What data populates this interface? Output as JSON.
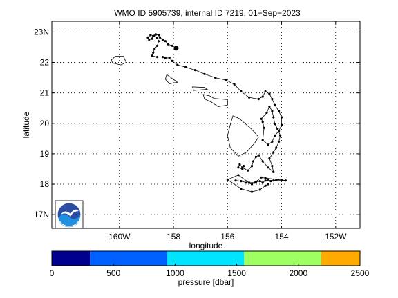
{
  "chart_data": [
    {
      "type": "map-track",
      "title": "WMO ID 5905739, internal ID 7219, 01−Sep−2023",
      "xlabel": "longitude",
      "ylabel": "latitude",
      "xlim": [
        -162.5,
        -151.1
      ],
      "ylim": [
        16.55,
        23.35
      ],
      "grid": true,
      "x_ticks": [
        {
          "value": -160,
          "label": "160W"
        },
        {
          "value": -158,
          "label": "158"
        },
        {
          "value": -156,
          "label": "156"
        },
        {
          "value": -154,
          "label": "154"
        },
        {
          "value": -152,
          "label": "152W"
        }
      ],
      "y_ticks": [
        {
          "value": 17,
          "label": "17N"
        },
        {
          "value": 18,
          "label": "18"
        },
        {
          "value": 19,
          "label": "19"
        },
        {
          "value": 20,
          "label": "20"
        },
        {
          "value": 21,
          "label": "21"
        },
        {
          "value": 22,
          "label": "22"
        },
        {
          "value": 23,
          "label": "23N"
        }
      ],
      "track_color": "#000000",
      "track": [
        [
          -157.9,
          22.47
        ],
        [
          -158.05,
          22.55
        ],
        [
          -158.2,
          22.6
        ],
        [
          -158.3,
          22.7
        ],
        [
          -158.4,
          22.75
        ],
        [
          -158.5,
          22.82
        ],
        [
          -158.55,
          22.9
        ],
        [
          -158.65,
          22.92
        ],
        [
          -158.75,
          22.86
        ],
        [
          -158.8,
          22.78
        ],
        [
          -158.9,
          22.75
        ],
        [
          -158.95,
          22.82
        ],
        [
          -158.85,
          22.9
        ],
        [
          -158.7,
          22.88
        ],
        [
          -158.6,
          22.8
        ],
        [
          -158.55,
          22.7
        ],
        [
          -158.6,
          22.55
        ],
        [
          -158.7,
          22.45
        ],
        [
          -158.75,
          22.32
        ],
        [
          -158.8,
          22.22
        ],
        [
          -158.6,
          22.18
        ],
        [
          -158.4,
          22.18
        ],
        [
          -158.3,
          22.15
        ],
        [
          -158.15,
          22.15
        ],
        [
          -158.05,
          22.05
        ],
        [
          -157.85,
          21.92
        ],
        [
          -157.55,
          21.85
        ],
        [
          -157.2,
          21.75
        ],
        [
          -156.85,
          21.62
        ],
        [
          -156.45,
          21.5
        ],
        [
          -156.05,
          21.42
        ],
        [
          -155.75,
          21.28
        ],
        [
          -155.5,
          21.05
        ],
        [
          -155.2,
          20.85
        ],
        [
          -154.85,
          20.8
        ],
        [
          -154.7,
          20.88
        ],
        [
          -154.6,
          21.05
        ],
        [
          -154.45,
          20.97
        ],
        [
          -154.35,
          20.8
        ],
        [
          -154.25,
          20.6
        ],
        [
          -154.1,
          20.4
        ],
        [
          -154,
          20.2
        ],
        [
          -154,
          19.95
        ],
        [
          -154.1,
          19.75
        ],
        [
          -154.25,
          19.6
        ],
        [
          -154.35,
          19.4
        ],
        [
          -154.5,
          19.3
        ],
        [
          -154.7,
          19.45
        ],
        [
          -154.65,
          19.85
        ],
        [
          -154.7,
          20.05
        ],
        [
          -154.75,
          20.15
        ],
        [
          -154.55,
          20.35
        ],
        [
          -154.45,
          20.55
        ],
        [
          -154.35,
          20.4
        ],
        [
          -154.3,
          20.2
        ],
        [
          -154.25,
          19.98
        ],
        [
          -154.15,
          19.82
        ],
        [
          -154.05,
          19.6
        ],
        [
          -154.1,
          19.4
        ],
        [
          -154.2,
          19.2
        ],
        [
          -154.3,
          19.05
        ],
        [
          -154.45,
          18.85
        ],
        [
          -154.35,
          18.6
        ],
        [
          -154.3,
          18.4
        ],
        [
          -154.5,
          18.55
        ],
        [
          -154.7,
          18.75
        ],
        [
          -154.85,
          18.95
        ],
        [
          -154.95,
          18.9
        ],
        [
          -155.05,
          18.75
        ],
        [
          -155.1,
          18.6
        ],
        [
          -155.25,
          18.45
        ],
        [
          -155.45,
          18.55
        ],
        [
          -155.55,
          18.65
        ],
        [
          -155.6,
          18.55
        ],
        [
          -155.45,
          18.5
        ],
        [
          -155.4,
          18.6
        ]
      ],
      "track_cluster": [
        [
          -155.7,
          18.12
        ],
        [
          -155.5,
          18.1
        ],
        [
          -155.3,
          18.05
        ],
        [
          -155.1,
          18.0
        ],
        [
          -154.95,
          18.07
        ],
        [
          -154.8,
          18.1
        ],
        [
          -154.7,
          18.05
        ],
        [
          -154.6,
          18.12
        ],
        [
          -154.5,
          18.15
        ],
        [
          -154.4,
          18.1
        ],
        [
          -154.3,
          18.12
        ],
        [
          -154.2,
          18.13
        ],
        [
          -154,
          18.13
        ],
        [
          -153.85,
          18.12
        ],
        [
          -154.6,
          18.2
        ],
        [
          -154.75,
          18.22
        ],
        [
          -155.0,
          18.05
        ],
        [
          -155.2,
          18.05
        ],
        [
          -155.6,
          18.3
        ],
        [
          -156.0,
          18.15
        ],
        [
          -155.5,
          17.85
        ],
        [
          -155.1,
          17.75
        ],
        [
          -154.8,
          17.82
        ],
        [
          -154.6,
          17.95
        ],
        [
          -154.5,
          18.0
        ]
      ],
      "start_marker_color": "#000000",
      "start_marker": [
        -157.9,
        22.47
      ],
      "land_color": "#000000",
      "islands": [
        [
          [
            -160.15,
            22.2
          ],
          [
            -159.85,
            22.2
          ],
          [
            -159.75,
            22.0
          ],
          [
            -159.95,
            21.92
          ],
          [
            -160.25,
            21.98
          ],
          [
            -160.3,
            22.08
          ]
        ],
        [
          [
            -158.25,
            21.6
          ],
          [
            -157.85,
            21.35
          ],
          [
            -158.15,
            21.3
          ],
          [
            -158.3,
            21.45
          ]
        ],
        [
          [
            -157.3,
            21.2
          ],
          [
            -156.85,
            21.18
          ],
          [
            -156.75,
            21.12
          ],
          [
            -157.25,
            21.08
          ]
        ],
        [
          [
            -156.9,
            20.95
          ],
          [
            -156.65,
            20.9
          ],
          [
            -156.5,
            20.82
          ],
          [
            -156.0,
            20.78
          ],
          [
            -156.0,
            20.6
          ],
          [
            -156.35,
            20.55
          ],
          [
            -156.6,
            20.7
          ],
          [
            -156.85,
            20.8
          ]
        ],
        [
          [
            -155.8,
            20.25
          ],
          [
            -155.55,
            20.15
          ],
          [
            -155.1,
            19.8
          ],
          [
            -154.85,
            19.55
          ],
          [
            -155.0,
            19.35
          ],
          [
            -155.3,
            19.05
          ],
          [
            -155.6,
            18.92
          ],
          [
            -155.9,
            19.2
          ],
          [
            -156.0,
            19.6
          ],
          [
            -155.9,
            19.95
          ]
        ]
      ]
    },
    {
      "type": "colorbar",
      "xlabel": "pressure [dbar]",
      "range": [
        0,
        2500
      ],
      "ticks": [
        0,
        500,
        1000,
        1500,
        2000,
        2500
      ],
      "bands": [
        {
          "from": 0,
          "to": 310,
          "color": "#00008f"
        },
        {
          "from": 310,
          "to": 935,
          "color": "#0060ff"
        },
        {
          "from": 935,
          "to": 1560,
          "color": "#00e4ff"
        },
        {
          "from": 1560,
          "to": 2185,
          "color": "#9dff62"
        },
        {
          "from": 2185,
          "to": 2500,
          "color": "#ffaa00"
        }
      ]
    }
  ],
  "logo": {
    "name": "noaa-logo",
    "text": "NOAA",
    "colors": [
      "#2b4da3",
      "#1f8fe0",
      "#ffffff"
    ]
  }
}
